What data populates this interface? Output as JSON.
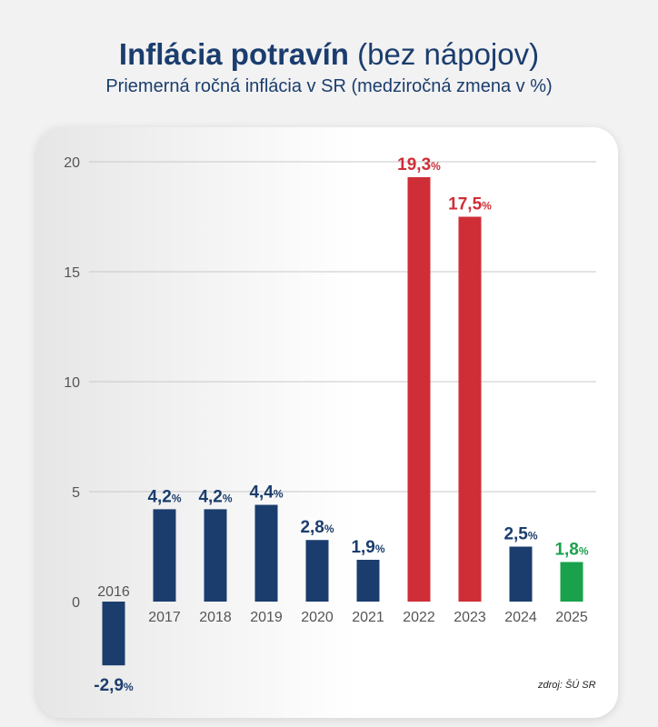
{
  "title": {
    "main": "Inflácia potravín",
    "suffix": "(bez nápojov)",
    "subtitle": "Priemerná ročná inflácia v SR (medziročná zmena v %)"
  },
  "source": "zdroj: ŠÚ SR",
  "colors": {
    "default": "#1b3d6e",
    "high": "#cf2e37",
    "latest": "#19a14c"
  },
  "chart_data": {
    "type": "bar",
    "categories": [
      "2016",
      "2017",
      "2018",
      "2019",
      "2020",
      "2021",
      "2022",
      "2023",
      "2024",
      "2025"
    ],
    "values": [
      -2.9,
      4.2,
      4.2,
      4.4,
      2.8,
      1.9,
      19.3,
      17.5,
      2.5,
      1.8
    ],
    "labels": [
      "-2,9",
      "4,2",
      "4,2",
      "4,4",
      "2,8",
      "1,9",
      "19,3",
      "17,5",
      "2,5",
      "1,8"
    ],
    "label_unit": "%",
    "color_keys": [
      "default",
      "default",
      "default",
      "default",
      "default",
      "default",
      "high",
      "high",
      "default",
      "latest"
    ],
    "yticks": [
      0,
      5,
      10,
      15,
      20
    ],
    "ylim": [
      -3,
      20
    ],
    "grid": true,
    "title": "Inflácia potravín (bez nápojov)",
    "ylabel": "",
    "xlabel": ""
  }
}
